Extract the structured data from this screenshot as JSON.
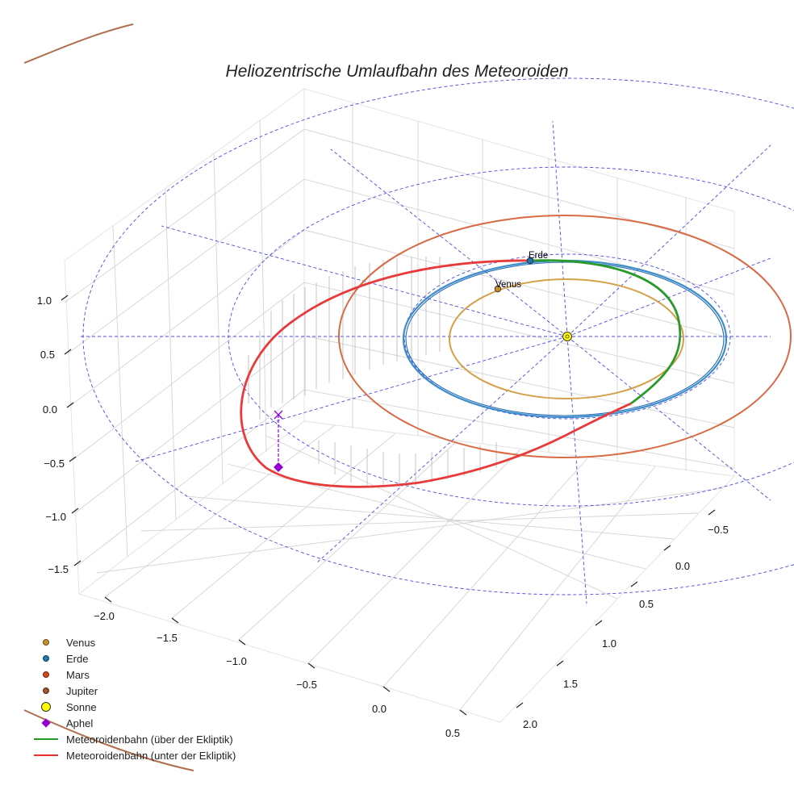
{
  "chart_data": {
    "type": "3d-line",
    "title": "Heliozentrische Umlaufbahn des Meteoroiden",
    "x_ticks": [
      "−2.0",
      "−1.5",
      "−1.0",
      "−0.5",
      "0.0",
      "0.5"
    ],
    "y_ticks": [
      "−0.5",
      "0.0",
      "0.5",
      "1.0",
      "1.5",
      "2.0"
    ],
    "z_ticks": [
      "−1.5",
      "−1.0",
      "−0.5",
      "0.0",
      "0.5",
      "1.0"
    ],
    "planets": [
      {
        "name": "Venus",
        "label": "Venus",
        "orbit_radius_au": 0.72,
        "color": "#c8902a"
      },
      {
        "name": "Erde",
        "label": "Erde",
        "orbit_radius_au": 1.0,
        "color": "#1f77b4"
      },
      {
        "name": "Mars",
        "label": "",
        "orbit_radius_au": 1.52,
        "color": "#d04a1e"
      },
      {
        "name": "Jupiter",
        "label": "",
        "orbit_radius_au": 5.2,
        "color": "#a0522d"
      }
    ],
    "sun": {
      "name": "Sonne",
      "position": [
        0,
        0,
        0
      ],
      "color": "#ffff00"
    },
    "meteoroid": {
      "above_ecliptic_color": "#229922",
      "below_ecliptic_color": "#e83030",
      "aphelion_label": "Aphel",
      "aphelion_color": "#9400d3"
    },
    "legend": [
      {
        "label": "Venus",
        "kind": "dot",
        "color": "#c8902a"
      },
      {
        "label": "Erde",
        "kind": "dot",
        "color": "#1f77b4"
      },
      {
        "label": "Mars",
        "kind": "dot",
        "color": "#d04a1e"
      },
      {
        "label": "Jupiter",
        "kind": "dot",
        "color": "#a0522d"
      },
      {
        "label": "Sonne",
        "kind": "sun",
        "color": "#ffff00"
      },
      {
        "label": "Aphel",
        "kind": "diamond",
        "color": "#9400d3"
      },
      {
        "label": "Meteoroidenbahn (über der Ekliptik)",
        "kind": "line",
        "color": "#229922"
      },
      {
        "label": "Meteoroidenbahn (unter der Ekliptik)",
        "kind": "line",
        "color": "#e83030"
      }
    ],
    "legend_position": "lower-left",
    "grid": true
  }
}
